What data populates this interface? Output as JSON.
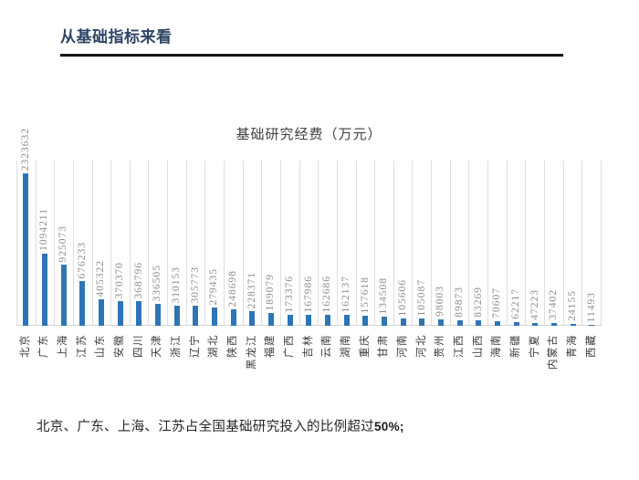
{
  "page": {
    "title": "从基础指标来看",
    "footer_text": "北京、广东、上海、江苏占全国基础研究投入的比例超过",
    "footer_highlight": "50%;"
  },
  "chart_data": {
    "type": "bar",
    "title": "基础研究经费（万元）",
    "categories": [
      "北京",
      "广东",
      "上海",
      "江苏",
      "山东",
      "安徽",
      "四川",
      "天津",
      "浙江",
      "辽宁",
      "湖北",
      "陕西",
      "黑龙江",
      "福建",
      "广西",
      "吉林",
      "云南",
      "湖南",
      "重庆",
      "甘肃",
      "河南",
      "河北",
      "贵州",
      "江西",
      "山西",
      "海南",
      "新疆",
      "宁夏",
      "内蒙古",
      "青海",
      "西藏"
    ],
    "values": [
      2323632,
      1094211,
      925073,
      676233,
      405322,
      370370,
      368796,
      336505,
      310153,
      305773,
      279435,
      248698,
      228371,
      189079,
      173376,
      167986,
      162686,
      162137,
      157618,
      134508,
      105606,
      105087,
      98003,
      89873,
      83269,
      70607,
      62217,
      47223,
      37402,
      24155,
      11493
    ],
    "xlabel": "",
    "ylabel": "",
    "ylim": [
      0,
      2500000
    ],
    "legend": "none",
    "grid": "vertical category separator lines",
    "value_labels": "rotated 90° counterclockwise above bars",
    "category_labels": "rotated 90° counterclockwise below axis",
    "bar_color": "#2E75B6",
    "gridline_color": "#DEDEDE",
    "value_label_color": "#8C8C8C",
    "category_label_color": "#3B3B3B",
    "title_color": "#2F4566"
  }
}
